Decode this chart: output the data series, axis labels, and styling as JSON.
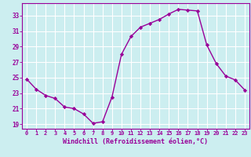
{
  "x": [
    0,
    1,
    2,
    3,
    4,
    5,
    6,
    7,
    8,
    9,
    10,
    11,
    12,
    13,
    14,
    15,
    16,
    17,
    18,
    19,
    20,
    21,
    22,
    23
  ],
  "y": [
    24.8,
    23.5,
    22.7,
    22.3,
    21.2,
    21.0,
    20.3,
    19.1,
    19.3,
    22.5,
    28.0,
    30.3,
    31.5,
    32.0,
    32.5,
    33.2,
    33.8,
    33.7,
    33.6,
    29.2,
    26.8,
    25.2,
    24.7,
    23.4
  ],
  "xlim": [
    -0.5,
    23.5
  ],
  "ylim": [
    18.4,
    34.6
  ],
  "yticks": [
    19,
    21,
    23,
    25,
    27,
    29,
    31,
    33
  ],
  "xticks": [
    0,
    1,
    2,
    3,
    4,
    5,
    6,
    7,
    8,
    9,
    10,
    11,
    12,
    13,
    14,
    15,
    16,
    17,
    18,
    19,
    20,
    21,
    22,
    23
  ],
  "xlabel": "Windchill (Refroidissement éolien,°C)",
  "line_color": "#990099",
  "bg_color": "#cceef0",
  "grid_color": "#ffffff",
  "marker": "D",
  "markersize": 2.2,
  "linewidth": 1.0
}
